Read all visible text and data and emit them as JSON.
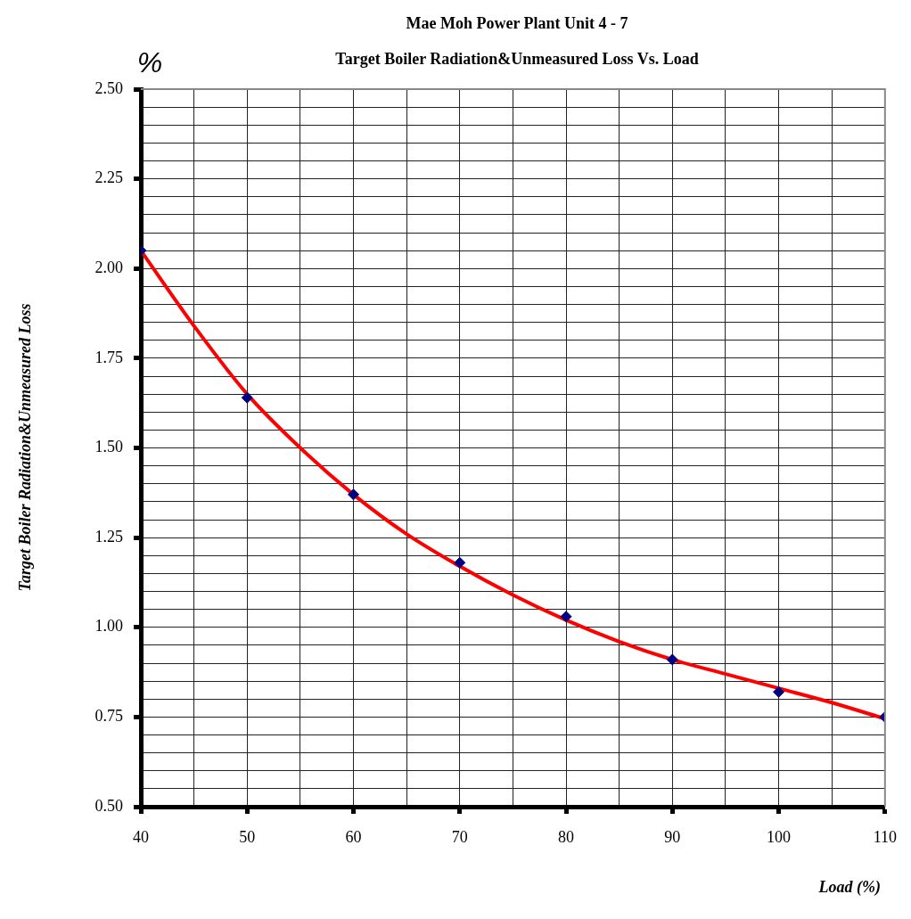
{
  "chart_data": {
    "type": "scatter",
    "title": "Mae Moh Power Plant Unit 4 - 7",
    "subtitle": "Target Boiler Radiation&Unmeasured Loss Vs. Load",
    "xlabel": "Load (%)",
    "ylabel": "Target Boiler Radiation&Unmeasured Loss",
    "annotations": [
      "%"
    ],
    "xlim": [
      40,
      110
    ],
    "xticks": [
      40,
      {
        "value": 45,
        "label": null
      },
      50,
      {
        "value": 55,
        "label": null
      },
      60,
      {
        "value": 65,
        "label": null
      },
      70,
      {
        "value": 75,
        "label": null
      },
      80,
      {
        "value": 85,
        "label": null
      },
      90,
      {
        "value": 95,
        "label": null
      },
      100,
      {
        "value": 105,
        "label": null
      },
      110
    ],
    "ylim": [
      0.5,
      2.5
    ],
    "yticks": [
      "0.50",
      {
        "value": 0.55,
        "label": null
      },
      {
        "value": 0.6,
        "label": null
      },
      {
        "value": 0.65,
        "label": null
      },
      {
        "value": 0.7,
        "label": null
      },
      {
        "value": 0.75,
        "label": "0.75"
      },
      {
        "value": 0.8,
        "label": null
      },
      {
        "value": 0.85,
        "label": null
      },
      {
        "value": 0.9,
        "label": null
      },
      {
        "value": 0.95,
        "label": null
      },
      {
        "value": 1,
        "label": "1.00"
      },
      {
        "value": 1.05,
        "label": null
      },
      {
        "value": 1.1,
        "label": null
      },
      {
        "value": 1.15,
        "label": null
      },
      {
        "value": 1.2,
        "label": null
      },
      {
        "value": 1.25,
        "label": "1.25"
      },
      {
        "value": 1.3,
        "label": null
      },
      {
        "value": 1.35,
        "label": null
      },
      {
        "value": 1.4,
        "label": null
      },
      {
        "value": 1.45,
        "label": null
      },
      {
        "value": 1.5,
        "label": "1.50"
      },
      {
        "value": 1.55,
        "label": null
      },
      {
        "value": 1.6,
        "label": null
      },
      {
        "value": 1.65,
        "label": null
      },
      {
        "value": 1.7,
        "label": null
      },
      {
        "value": 1.75,
        "label": "1.75"
      },
      {
        "value": 1.8,
        "label": null
      },
      {
        "value": 1.85,
        "label": null
      },
      {
        "value": 1.9,
        "label": null
      },
      {
        "value": 1.95,
        "label": null
      },
      {
        "value": 2,
        "label": "2.00"
      },
      {
        "value": 2.05,
        "label": null
      },
      {
        "value": 2.1,
        "label": null
      },
      {
        "value": 2.15,
        "label": null
      },
      {
        "value": 2.2,
        "label": null
      },
      {
        "value": 2.25,
        "label": "2.25"
      },
      {
        "value": 2.3,
        "label": null
      },
      {
        "value": 2.35,
        "label": null
      },
      {
        "value": 2.4,
        "label": null
      },
      {
        "value": 2.45,
        "label": null
      },
      {
        "value": 2.5,
        "label": "2.50"
      }
    ],
    "grid": true,
    "legend": false,
    "series": [
      {
        "type": "line",
        "marker": "none",
        "color": "#ff0000",
        "x": [
          40,
          45,
          50,
          55,
          60,
          65,
          70,
          75,
          80,
          85,
          90,
          95,
          100,
          105,
          110
        ],
        "values": [
          2.05,
          1.84,
          1.65,
          1.5,
          1.37,
          1.26,
          1.17,
          1.09,
          1.02,
          0.96,
          0.91,
          0.87,
          0.83,
          0.79,
          0.745
        ]
      },
      {
        "marker": "diamond",
        "color": "#000080",
        "x": [
          40,
          50,
          60,
          70,
          80,
          90,
          100,
          110
        ],
        "values": [
          2.05,
          1.64,
          1.37,
          1.18,
          1.03,
          0.91,
          0.82,
          0.75
        ]
      }
    ]
  }
}
